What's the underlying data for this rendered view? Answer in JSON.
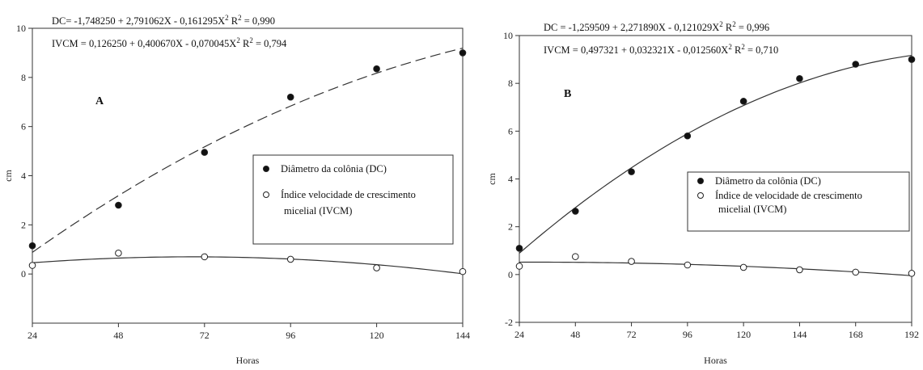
{
  "chart_data": [
    {
      "type": "scatter",
      "panel_label": "A",
      "xlabel": "Horas",
      "ylabel": "cm",
      "xlim": [
        24,
        144
      ],
      "ylim": [
        -2,
        10
      ],
      "xticks": [
        24,
        48,
        72,
        96,
        120,
        144
      ],
      "yticks": [
        0,
        2,
        4,
        6,
        8,
        10
      ],
      "equations": [
        "DC= -1,748250 + 2,791062X - 0,161295X² R² = 0,990",
        "IVCM = 0,126250 + 0,400670X - 0,070045X² R² = 0,794"
      ],
      "legend_position": "center-right",
      "series": [
        {
          "name": "Diâmetro da colônia (DC)",
          "marker": "filled-circle",
          "line": "dashed",
          "x": [
            24,
            48,
            72,
            96,
            120,
            144
          ],
          "y": [
            1.15,
            2.8,
            4.95,
            7.2,
            8.35,
            9.0
          ],
          "fit": [
            -1.74825,
            2.791062,
            -0.161295
          ]
        },
        {
          "name": "Índice velocidade de crescimento micelial (IVCM)",
          "legend_lines": [
            "Índice velocidade de crescimento",
            "micelial (IVCM)"
          ],
          "marker": "open-circle",
          "line": "solid",
          "x": [
            24,
            48,
            72,
            96,
            120,
            144
          ],
          "y": [
            0.35,
            0.85,
            0.7,
            0.6,
            0.25,
            0.1
          ],
          "fit": [
            0.12625,
            0.40067,
            -0.070045
          ]
        }
      ]
    },
    {
      "type": "scatter",
      "panel_label": "B",
      "xlabel": "Horas",
      "ylabel": "cm",
      "xlim": [
        24,
        192
      ],
      "ylim": [
        -2,
        10
      ],
      "xticks": [
        24,
        48,
        72,
        96,
        120,
        144,
        168,
        192
      ],
      "yticks": [
        -2,
        0,
        2,
        4,
        6,
        8,
        10
      ],
      "equations": [
        "DC = -1,259509 + 2,271890X - 0,121029X² R² = 0,996",
        "IVCM = 0,497321 + 0,032321X - 0,012560X² R² = 0,710"
      ],
      "legend_position": "center-right",
      "series": [
        {
          "name": "Diâmetro da colônia (DC)",
          "marker": "filled-circle",
          "line": "solid",
          "x": [
            24,
            48,
            72,
            96,
            120,
            144,
            168,
            192
          ],
          "y": [
            1.1,
            2.65,
            4.3,
            5.8,
            7.25,
            8.2,
            8.8,
            9.0
          ],
          "fit": [
            -1.259509,
            2.27189,
            -0.121029
          ]
        },
        {
          "name": "Índice de velocidade de crescimento micelial (IVCM)",
          "legend_lines": [
            "Índice de velocidade de crescimento",
            "micelial (IVCM)"
          ],
          "marker": "open-circle",
          "line": "solid",
          "x": [
            24,
            48,
            72,
            96,
            120,
            144,
            168,
            192
          ],
          "y": [
            0.35,
            0.75,
            0.55,
            0.4,
            0.3,
            0.2,
            0.1,
            0.05
          ],
          "fit": [
            0.497321,
            0.032321,
            -0.01256
          ]
        }
      ]
    }
  ]
}
